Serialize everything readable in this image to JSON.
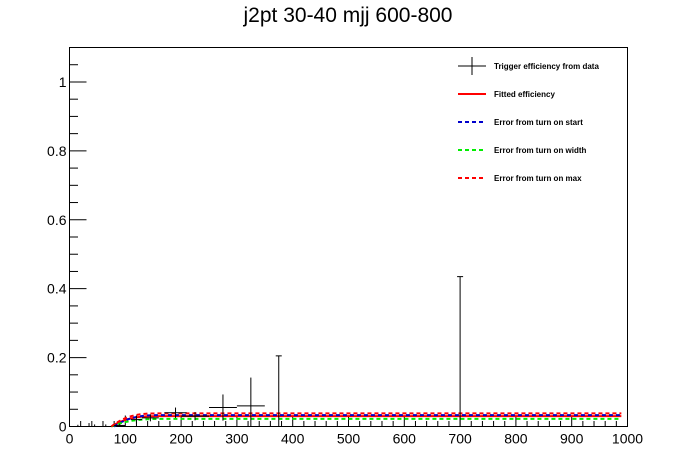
{
  "chart_data": {
    "type": "line",
    "title": "j2pt 30-40 mjj 600-800",
    "xlabel": "",
    "ylabel": "",
    "xlim": [
      0,
      1000
    ],
    "ylim": [
      0,
      1.1
    ],
    "x_ticks": [
      0,
      100,
      200,
      300,
      400,
      500,
      600,
      700,
      800,
      900,
      1000
    ],
    "y_ticks": [
      0,
      0.2,
      0.4,
      0.6,
      0.8,
      1
    ],
    "x_tick_labels": [
      "0",
      "100",
      "200",
      "300",
      "400",
      "500",
      "600",
      "700",
      "800",
      "900",
      "1000"
    ],
    "y_tick_labels": [
      "0",
      "0.2",
      "0.4",
      "0.6",
      "0.8",
      "1"
    ],
    "legend_position": "top-right",
    "legend": [
      {
        "label": "Trigger efficiency from data",
        "color": "#000000",
        "style": "errorbar"
      },
      {
        "label": "Fitted efficiency",
        "color": "#ff0000",
        "style": "solid"
      },
      {
        "label": "Error from turn on start",
        "color": "#0000cc",
        "style": "dashed"
      },
      {
        "label": "Error from turn on width",
        "color": "#00ee00",
        "style": "dashed"
      },
      {
        "label": "Error from turn on max",
        "color": "#ff0000",
        "style": "dashed"
      }
    ],
    "data_points": [
      {
        "x": 15,
        "xerr": 5,
        "y": 0.0,
        "yerr": 0.005
      },
      {
        "x": 35,
        "xerr": 5,
        "y": 0.0,
        "yerr": 0.01
      },
      {
        "x": 45,
        "xerr": 5,
        "y": 0.0,
        "yerr": 0.006
      },
      {
        "x": 65,
        "xerr": 5,
        "y": 0.0,
        "yerr": 0.006
      },
      {
        "x": 90,
        "xerr": 10,
        "y": 0.003,
        "yerr": 0.005
      },
      {
        "x": 120,
        "xerr": 10,
        "y": 0.02,
        "yerr": 0.012
      },
      {
        "x": 145,
        "xerr": 15,
        "y": 0.025,
        "yerr": 0.01
      },
      {
        "x": 190,
        "xerr": 20,
        "y": 0.04,
        "yerr": 0.015
      },
      {
        "x": 225,
        "xerr": 25,
        "y": 0.03,
        "yerr": 0.012
      },
      {
        "x": 275,
        "xerr": 25,
        "y": 0.055,
        "yerr": 0.038
      },
      {
        "x": 325,
        "xerr": 25,
        "y": 0.06,
        "yerr": 0.082
      },
      {
        "x": 375,
        "xerr": 0,
        "y": 0.0,
        "yerr": 0.205
      },
      {
        "x": 700,
        "xerr": 0,
        "y": 0.0,
        "yerr": 0.435
      }
    ],
    "series": [
      {
        "name": "Fitted efficiency",
        "color": "#ff0000",
        "dashed": false,
        "plateau": 0.03,
        "start": 75,
        "width": 40,
        "xend": 990
      },
      {
        "name": "Error from turn on start",
        "color": "#0000cc",
        "dashed": true,
        "plateau": 0.033,
        "start": 80,
        "width": 40,
        "xend": 990
      },
      {
        "name": "Error from turn on width",
        "color": "#00ee00",
        "dashed": true,
        "plateau": 0.022,
        "start": 75,
        "width": 45,
        "xend": 990
      },
      {
        "name": "Error from turn on max",
        "color": "#ff0000",
        "dashed": true,
        "plateau": 0.038,
        "start": 75,
        "width": 40,
        "xend": 990
      }
    ]
  }
}
